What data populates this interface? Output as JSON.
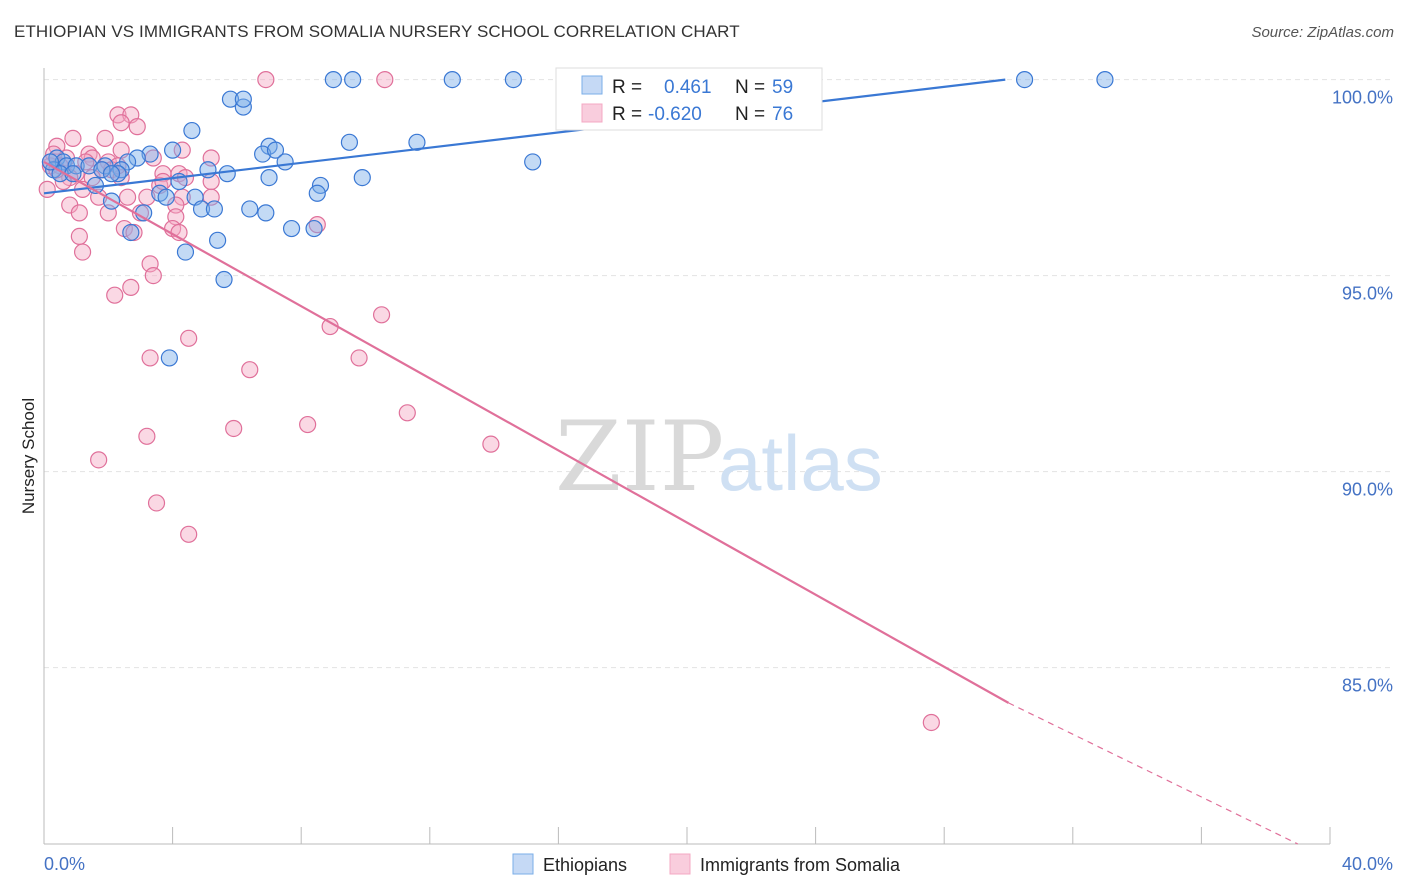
{
  "title": "ETHIOPIAN VS IMMIGRANTS FROM SOMALIA NURSERY SCHOOL CORRELATION CHART",
  "source": "Source: ZipAtlas.com",
  "watermark": {
    "zip": "ZIP",
    "atlas": "atlas"
  },
  "colors": {
    "blue": "#7aaee8",
    "blue_line": "#3a78d4",
    "pink": "#f4a8c3",
    "pink_line": "#e0709a",
    "axis_text": "#4472c4"
  },
  "legend_box": {
    "rows": [
      {
        "r_label": "R =",
        "r_value": "0.461",
        "n_label": "N =",
        "n_value": "59",
        "color": "blue"
      },
      {
        "r_label": "R =",
        "r_value": "-0.620",
        "n_label": "N =",
        "n_value": "76",
        "color": "pink"
      }
    ]
  },
  "bottom_legend": [
    "Ethiopians",
    "Immigrants from Somalia"
  ],
  "chart_data": {
    "type": "scatter",
    "title": "ETHIOPIAN VS IMMIGRANTS FROM SOMALIA NURSERY SCHOOL CORRELATION CHART",
    "xlabel": "",
    "ylabel": "Nursery School",
    "xlim": [
      0,
      40
    ],
    "ylim": [
      80.5,
      100.5
    ],
    "x_tick_labels": [
      "0.0%",
      "40.0%"
    ],
    "y_ticks": [
      85,
      90,
      95,
      100
    ],
    "y_tick_labels": [
      "85.0%",
      "90.0%",
      "95.0%",
      "100.0%"
    ],
    "grid": true,
    "series": [
      {
        "name": "Ethiopians",
        "color": "blue",
        "r": 0.461,
        "n": 59,
        "trend": {
          "x0": 0,
          "y0": 97.1,
          "x1": 29.9,
          "y1": 100.0
        },
        "points": [
          [
            9.0,
            100
          ],
          [
            9.6,
            100
          ],
          [
            12.7,
            100
          ],
          [
            14.6,
            100
          ],
          [
            30.5,
            100
          ],
          [
            33.0,
            100
          ],
          [
            5.8,
            99.5
          ],
          [
            6.2,
            99.3
          ],
          [
            6.2,
            99.5
          ],
          [
            4.6,
            98.7
          ],
          [
            11.6,
            98.4
          ],
          [
            7.0,
            98.3
          ],
          [
            9.5,
            98.4
          ],
          [
            4.0,
            98.2
          ],
          [
            3.3,
            98.1
          ],
          [
            2.9,
            98.0
          ],
          [
            2.6,
            97.9
          ],
          [
            0.4,
            98.0
          ],
          [
            0.6,
            97.9
          ],
          [
            0.7,
            97.8
          ],
          [
            1.0,
            97.8
          ],
          [
            1.4,
            97.8
          ],
          [
            1.9,
            97.8
          ],
          [
            2.4,
            97.7
          ],
          [
            2.3,
            97.6
          ],
          [
            5.1,
            97.7
          ],
          [
            5.7,
            97.6
          ],
          [
            6.8,
            98.1
          ],
          [
            7.2,
            98.2
          ],
          [
            7.5,
            97.9
          ],
          [
            15.2,
            97.9
          ],
          [
            0.3,
            97.7
          ],
          [
            0.5,
            97.6
          ],
          [
            1.8,
            97.7
          ],
          [
            2.1,
            97.6
          ],
          [
            1.6,
            97.3
          ],
          [
            4.2,
            97.4
          ],
          [
            7.0,
            97.5
          ],
          [
            8.6,
            97.3
          ],
          [
            9.9,
            97.5
          ],
          [
            3.6,
            97.1
          ],
          [
            3.8,
            97.0
          ],
          [
            4.7,
            97.0
          ],
          [
            8.5,
            97.1
          ],
          [
            2.1,
            96.9
          ],
          [
            3.1,
            96.6
          ],
          [
            4.9,
            96.7
          ],
          [
            5.3,
            96.7
          ],
          [
            6.4,
            96.7
          ],
          [
            6.9,
            96.6
          ],
          [
            7.7,
            96.2
          ],
          [
            8.4,
            96.2
          ],
          [
            5.4,
            95.9
          ],
          [
            4.4,
            95.6
          ],
          [
            5.6,
            94.9
          ],
          [
            3.9,
            92.9
          ],
          [
            2.7,
            96.1
          ],
          [
            0.2,
            97.9
          ],
          [
            0.9,
            97.6
          ]
        ]
      },
      {
        "name": "Immigrants from Somalia",
        "color": "pink",
        "r": -0.62,
        "n": 76,
        "trend": {
          "x0": 0,
          "y0": 97.9,
          "x1": 30.0,
          "y1": 84.1,
          "dash_x1": 39.0,
          "dash_y1": 80.5
        },
        "points": [
          [
            6.9,
            100
          ],
          [
            10.6,
            100
          ],
          [
            2.3,
            99.1
          ],
          [
            2.7,
            99.1
          ],
          [
            2.4,
            98.9
          ],
          [
            2.9,
            98.8
          ],
          [
            0.9,
            98.5
          ],
          [
            1.9,
            98.5
          ],
          [
            0.4,
            98.3
          ],
          [
            2.4,
            98.2
          ],
          [
            4.3,
            98.2
          ],
          [
            1.4,
            98.1
          ],
          [
            0.3,
            98.1
          ],
          [
            0.7,
            98.0
          ],
          [
            1.5,
            98.0
          ],
          [
            3.4,
            98.0
          ],
          [
            5.2,
            98.0
          ],
          [
            2.0,
            97.9
          ],
          [
            2.1,
            97.7
          ],
          [
            0.2,
            97.8
          ],
          [
            0.5,
            97.8
          ],
          [
            1.8,
            97.7
          ],
          [
            1.0,
            97.6
          ],
          [
            3.7,
            97.6
          ],
          [
            4.2,
            97.6
          ],
          [
            0.8,
            97.5
          ],
          [
            1.5,
            97.5
          ],
          [
            2.4,
            97.5
          ],
          [
            0.6,
            97.4
          ],
          [
            5.2,
            97.4
          ],
          [
            1.2,
            97.2
          ],
          [
            3.6,
            97.3
          ],
          [
            1.7,
            97.0
          ],
          [
            2.6,
            97.0
          ],
          [
            3.2,
            97.0
          ],
          [
            4.3,
            97.0
          ],
          [
            0.1,
            97.2
          ],
          [
            4.1,
            96.8
          ],
          [
            0.8,
            96.8
          ],
          [
            1.1,
            96.6
          ],
          [
            2.0,
            96.6
          ],
          [
            3.0,
            96.6
          ],
          [
            4.1,
            96.5
          ],
          [
            2.5,
            96.2
          ],
          [
            2.8,
            96.1
          ],
          [
            4.0,
            96.2
          ],
          [
            4.2,
            96.1
          ],
          [
            8.5,
            96.3
          ],
          [
            1.1,
            96.0
          ],
          [
            1.2,
            95.6
          ],
          [
            3.3,
            95.3
          ],
          [
            3.4,
            95.0
          ],
          [
            2.7,
            94.7
          ],
          [
            2.2,
            94.5
          ],
          [
            10.5,
            94.0
          ],
          [
            8.9,
            93.7
          ],
          [
            4.5,
            93.4
          ],
          [
            3.3,
            92.9
          ],
          [
            9.8,
            92.9
          ],
          [
            6.4,
            92.6
          ],
          [
            11.3,
            91.5
          ],
          [
            8.2,
            91.2
          ],
          [
            5.9,
            91.1
          ],
          [
            3.2,
            90.9
          ],
          [
            13.9,
            90.7
          ],
          [
            1.7,
            90.3
          ],
          [
            3.5,
            89.2
          ],
          [
            4.5,
            88.4
          ],
          [
            27.6,
            83.6
          ],
          [
            0.2,
            97.9
          ],
          [
            0.4,
            97.7
          ],
          [
            1.3,
            97.9
          ],
          [
            2.3,
            97.8
          ],
          [
            3.7,
            97.4
          ],
          [
            4.4,
            97.5
          ],
          [
            5.2,
            97.0
          ]
        ]
      }
    ]
  }
}
